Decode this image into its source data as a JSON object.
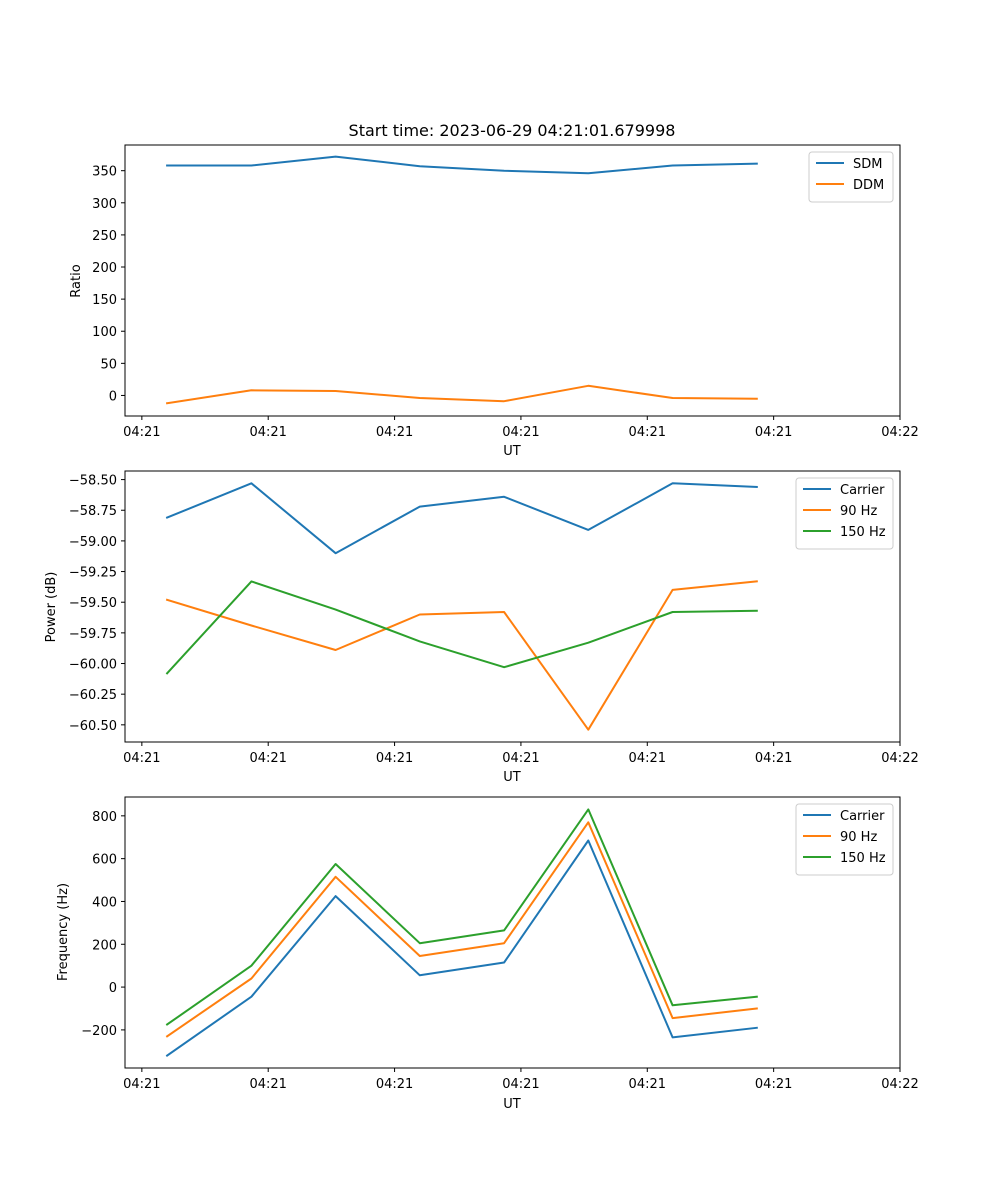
{
  "title": "Start time: 2023-06-29 04:21:01.679998",
  "chart_data": [
    {
      "type": "line",
      "title": "Start time: 2023-06-29 04:21:01.679998",
      "xlabel": "UT",
      "ylabel": "Ratio",
      "x_tick_labels": [
        "04:21",
        "04:21",
        "04:21",
        "04:21",
        "04:21",
        "04:21",
        "04:22"
      ],
      "xlim": [
        0,
        9.2
      ],
      "x": [
        0.5,
        1.5,
        2.5,
        3.5,
        4.5,
        5.5,
        6.5,
        7.5
      ],
      "ylim": [
        -32,
        390
      ],
      "y_ticks": [
        0,
        50,
        100,
        150,
        200,
        250,
        300,
        350
      ],
      "y_tick_labels": [
        "0",
        "50",
        "100",
        "150",
        "200",
        "250",
        "300",
        "350"
      ],
      "legend_position": "top-right",
      "grid": false,
      "series": [
        {
          "name": "SDM",
          "color": "#1f77b4",
          "values": [
            358,
            358,
            372,
            357,
            350,
            346,
            358,
            361
          ]
        },
        {
          "name": "DDM",
          "color": "#ff7f0e",
          "values": [
            -12,
            8,
            7,
            -4,
            -9,
            15,
            -4,
            -5
          ]
        }
      ]
    },
    {
      "type": "line",
      "xlabel": "UT",
      "ylabel": "Power (dB)",
      "x_tick_labels": [
        "04:21",
        "04:21",
        "04:21",
        "04:21",
        "04:21",
        "04:21",
        "04:22"
      ],
      "xlim": [
        0,
        9.2
      ],
      "x": [
        0.5,
        1.5,
        2.5,
        3.5,
        4.5,
        5.5,
        6.5,
        7.5
      ],
      "ylim": [
        -60.64,
        -58.43
      ],
      "y_ticks": [
        -60.5,
        -60.25,
        -60.0,
        -59.75,
        -59.5,
        -59.25,
        -59.0,
        -58.75,
        -58.5
      ],
      "y_tick_labels": [
        "−60.50",
        "−60.25",
        "−60.00",
        "−59.75",
        "−59.50",
        "−59.25",
        "−59.00",
        "−58.75",
        "−58.50"
      ],
      "legend_position": "top-right",
      "grid": false,
      "series": [
        {
          "name": "Carrier",
          "color": "#1f77b4",
          "values": [
            -58.81,
            -58.53,
            -59.1,
            -58.72,
            -58.64,
            -58.91,
            -58.53,
            -58.56
          ]
        },
        {
          "name": "90 Hz",
          "color": "#ff7f0e",
          "values": [
            -59.48,
            -59.69,
            -59.89,
            -59.6,
            -59.58,
            -60.54,
            -59.4,
            -59.33
          ]
        },
        {
          "name": "150 Hz",
          "color": "#2ca02c",
          "values": [
            -60.08,
            -59.33,
            -59.56,
            -59.82,
            -60.03,
            -59.83,
            -59.58,
            -59.57
          ]
        }
      ]
    },
    {
      "type": "line",
      "xlabel": "UT",
      "ylabel": "Frequency (Hz)",
      "x_tick_labels": [
        "04:21",
        "04:21",
        "04:21",
        "04:21",
        "04:21",
        "04:21",
        "04:22"
      ],
      "xlim": [
        0,
        9.2
      ],
      "x": [
        0.5,
        1.5,
        2.5,
        3.5,
        4.5,
        5.5,
        6.5,
        7.5
      ],
      "ylim": [
        -378,
        888
      ],
      "y_ticks": [
        -200,
        0,
        200,
        400,
        600,
        800
      ],
      "y_tick_labels": [
        "−200",
        "0",
        "200",
        "400",
        "600",
        "800"
      ],
      "legend_position": "top-right",
      "grid": false,
      "series": [
        {
          "name": "Carrier",
          "color": "#1f77b4",
          "values": [
            -320,
            -45,
            425,
            55,
            115,
            685,
            -235,
            -190
          ]
        },
        {
          "name": "90 Hz",
          "color": "#ff7f0e",
          "values": [
            -230,
            40,
            515,
            145,
            205,
            770,
            -145,
            -100
          ]
        },
        {
          "name": "150 Hz",
          "color": "#2ca02c",
          "values": [
            -175,
            100,
            575,
            205,
            265,
            830,
            -85,
            -45
          ]
        }
      ]
    }
  ]
}
